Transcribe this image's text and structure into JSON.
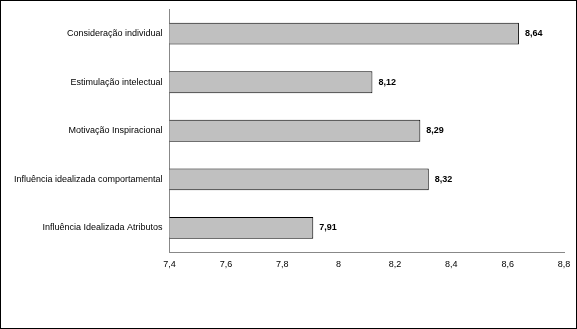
{
  "chart_data": {
    "type": "bar",
    "orientation": "horizontal",
    "categories": [
      "Consideração individual",
      "Estimulação intelectual",
      "Motivação Inspiracional",
      "Influência idealizada comportamental",
      "Influência Idealizada Atributos"
    ],
    "values": [
      8.64,
      8.12,
      8.29,
      8.32,
      7.91
    ],
    "value_labels": [
      "8,64",
      "8,12",
      "8,29",
      "8,32",
      "7,91"
    ],
    "data_labels": true,
    "color": "#c0c0c0",
    "xlim": [
      7.4,
      8.8
    ],
    "xticks": [
      {
        "value": 7.4,
        "label": "7,4"
      },
      {
        "value": 7.6,
        "label": "7,6"
      },
      {
        "value": 7.8,
        "label": "7,8"
      },
      8,
      {
        "value": 8.2,
        "label": "8,2"
      },
      {
        "value": 8.4,
        "label": "8,4"
      },
      {
        "value": 8.6,
        "label": "8,6"
      },
      {
        "value": 8.8,
        "label": "8,8"
      }
    ],
    "grid": false
  }
}
